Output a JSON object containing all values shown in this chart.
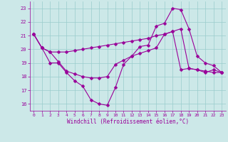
{
  "line1_x": [
    0,
    1,
    2,
    3,
    4,
    5,
    6,
    7,
    8,
    9,
    10,
    11,
    12,
    13,
    14,
    15,
    16,
    17,
    18,
    19,
    20,
    21,
    22,
    23
  ],
  "line1_y": [
    21.1,
    20.1,
    19.0,
    19.0,
    18.3,
    17.7,
    17.3,
    16.3,
    16.0,
    15.9,
    17.2,
    18.9,
    19.5,
    20.2,
    20.3,
    21.7,
    21.9,
    23.0,
    22.9,
    21.5,
    19.5,
    19.0,
    18.8,
    18.3
  ],
  "line2_x": [
    0,
    1,
    2,
    3,
    4,
    5,
    6,
    7,
    8,
    9,
    10,
    11,
    12,
    13,
    14,
    15,
    16,
    17,
    18,
    19,
    20,
    21,
    22,
    23
  ],
  "line2_y": [
    21.1,
    20.1,
    19.8,
    19.8,
    19.8,
    19.9,
    20.0,
    20.1,
    20.2,
    20.3,
    20.4,
    20.5,
    20.6,
    20.7,
    20.8,
    21.0,
    21.1,
    21.3,
    21.5,
    18.6,
    18.5,
    18.4,
    18.3,
    18.3
  ],
  "line3_x": [
    0,
    1,
    2,
    3,
    4,
    5,
    6,
    7,
    8,
    9,
    10,
    11,
    12,
    13,
    14,
    15,
    16,
    17,
    18,
    19,
    20,
    21,
    22,
    23
  ],
  "line3_y": [
    21.1,
    20.1,
    19.8,
    19.1,
    18.4,
    18.2,
    18.0,
    17.9,
    17.9,
    18.0,
    18.9,
    19.2,
    19.5,
    19.7,
    19.9,
    20.1,
    21.1,
    21.3,
    18.5,
    18.6,
    18.5,
    18.3,
    18.5,
    18.3
  ],
  "line_color": "#990099",
  "bg_color": "#cce8e8",
  "grid_color": "#99cccc",
  "xlim": [
    -0.5,
    23.5
  ],
  "ylim": [
    15.5,
    23.5
  ],
  "yticks": [
    16,
    17,
    18,
    19,
    20,
    21,
    22,
    23
  ],
  "xticks": [
    0,
    1,
    2,
    3,
    4,
    5,
    6,
    7,
    8,
    9,
    10,
    11,
    12,
    13,
    14,
    15,
    16,
    17,
    18,
    19,
    20,
    21,
    22,
    23
  ],
  "xlabel": "Windchill (Refroidissement éolien,°C)"
}
